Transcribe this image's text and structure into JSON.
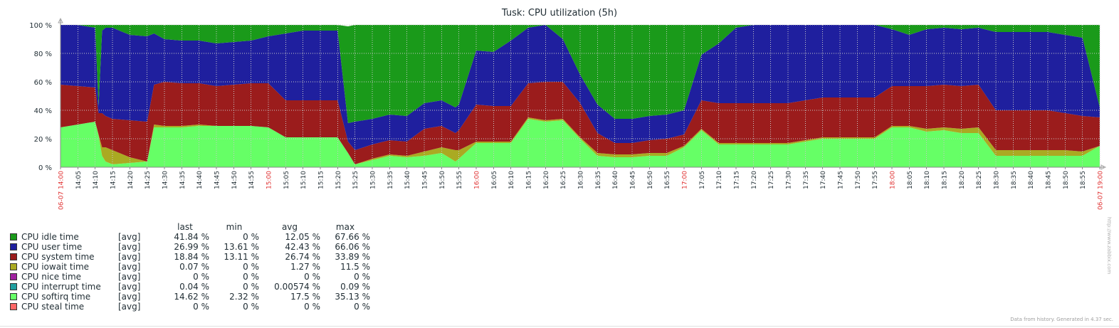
{
  "chart_data": {
    "type": "area",
    "stacked": true,
    "title": "Tusk: CPU utilization (5h)",
    "ylim": [
      0,
      100
    ],
    "y_ticks": [
      "0 %",
      "20 %",
      "40 %",
      "60 %",
      "80 %",
      "100 %"
    ],
    "y_tick_values": [
      0,
      20,
      40,
      60,
      80,
      100
    ],
    "x_ticks": [
      {
        "t": 0,
        "label": "06-07 14:00",
        "highlight": true
      },
      {
        "t": 5,
        "label": "14:05"
      },
      {
        "t": 10,
        "label": "14:10"
      },
      {
        "t": 15,
        "label": "14:15"
      },
      {
        "t": 20,
        "label": "14:20"
      },
      {
        "t": 25,
        "label": "14:25"
      },
      {
        "t": 30,
        "label": "14:30"
      },
      {
        "t": 35,
        "label": "14:35"
      },
      {
        "t": 40,
        "label": "14:40"
      },
      {
        "t": 45,
        "label": "14:45"
      },
      {
        "t": 50,
        "label": "14:50"
      },
      {
        "t": 55,
        "label": "14:55"
      },
      {
        "t": 60,
        "label": "15:00",
        "highlight": true
      },
      {
        "t": 65,
        "label": "15:05"
      },
      {
        "t": 70,
        "label": "15:10"
      },
      {
        "t": 75,
        "label": "15:15"
      },
      {
        "t": 80,
        "label": "15:20"
      },
      {
        "t": 85,
        "label": "15:25"
      },
      {
        "t": 90,
        "label": "15:30"
      },
      {
        "t": 95,
        "label": "15:35"
      },
      {
        "t": 100,
        "label": "15:40"
      },
      {
        "t": 105,
        "label": "15:45"
      },
      {
        "t": 110,
        "label": "15:50"
      },
      {
        "t": 115,
        "label": "15:55"
      },
      {
        "t": 120,
        "label": "16:00",
        "highlight": true
      },
      {
        "t": 125,
        "label": "16:05"
      },
      {
        "t": 130,
        "label": "16:10"
      },
      {
        "t": 135,
        "label": "16:15"
      },
      {
        "t": 140,
        "label": "16:20"
      },
      {
        "t": 145,
        "label": "16:25"
      },
      {
        "t": 150,
        "label": "16:30"
      },
      {
        "t": 155,
        "label": "16:35"
      },
      {
        "t": 160,
        "label": "16:40"
      },
      {
        "t": 165,
        "label": "16:45"
      },
      {
        "t": 170,
        "label": "16:50"
      },
      {
        "t": 175,
        "label": "16:55"
      },
      {
        "t": 180,
        "label": "17:00",
        "highlight": true
      },
      {
        "t": 185,
        "label": "17:05"
      },
      {
        "t": 190,
        "label": "17:10"
      },
      {
        "t": 195,
        "label": "17:15"
      },
      {
        "t": 200,
        "label": "17:20"
      },
      {
        "t": 205,
        "label": "17:25"
      },
      {
        "t": 210,
        "label": "17:30"
      },
      {
        "t": 215,
        "label": "17:35"
      },
      {
        "t": 220,
        "label": "17:40"
      },
      {
        "t": 225,
        "label": "17:45"
      },
      {
        "t": 230,
        "label": "17:50"
      },
      {
        "t": 235,
        "label": "17:55"
      },
      {
        "t": 240,
        "label": "18:00",
        "highlight": true
      },
      {
        "t": 245,
        "label": "18:05"
      },
      {
        "t": 250,
        "label": "18:10"
      },
      {
        "t": 255,
        "label": "18:15"
      },
      {
        "t": 260,
        "label": "18:20"
      },
      {
        "t": 265,
        "label": "18:25"
      },
      {
        "t": 270,
        "label": "18:30"
      },
      {
        "t": 275,
        "label": "18:35"
      },
      {
        "t": 280,
        "label": "18:40"
      },
      {
        "t": 285,
        "label": "18:45"
      },
      {
        "t": 290,
        "label": "18:50"
      },
      {
        "t": 295,
        "label": "18:55"
      },
      {
        "t": 300,
        "label": "06-07 19:00",
        "highlight": true
      }
    ],
    "x_minutes": [
      0,
      5,
      10,
      11,
      12,
      13,
      15,
      20,
      25,
      27,
      30,
      35,
      40,
      45,
      50,
      55,
      60,
      65,
      70,
      75,
      80,
      83,
      85,
      90,
      95,
      100,
      105,
      110,
      114,
      115,
      120,
      125,
      130,
      135,
      140,
      145,
      150,
      155,
      160,
      165,
      170,
      175,
      180,
      185,
      190,
      195,
      200,
      205,
      210,
      215,
      220,
      225,
      230,
      235,
      240,
      245,
      250,
      255,
      260,
      265,
      270,
      275,
      280,
      285,
      290,
      295,
      300
    ],
    "series": [
      {
        "name": "CPU softirq time",
        "color": "#66ff66",
        "values": [
          28,
          30,
          32,
          22,
          8,
          4,
          2,
          3,
          4,
          28,
          28,
          28,
          29,
          29,
          29,
          29,
          28,
          21,
          21,
          21,
          21,
          10,
          2,
          5,
          8,
          7,
          8,
          10,
          4,
          6,
          17,
          17,
          17,
          34,
          32,
          33,
          20,
          8,
          7,
          7,
          8,
          8,
          14,
          26,
          16,
          16,
          16,
          16,
          16,
          18,
          20,
          20,
          20,
          20,
          28,
          28,
          25,
          26,
          24,
          24,
          8,
          8,
          8,
          8,
          8,
          8,
          15
        ]
      },
      {
        "name": "CPU iowait time",
        "color": "#aaaa22",
        "values": [
          0,
          0,
          0,
          1,
          6,
          10,
          10,
          4,
          0,
          2,
          1,
          1,
          1,
          0,
          0,
          0,
          0,
          0,
          0,
          0,
          0,
          0,
          0,
          1,
          1,
          1,
          3,
          4,
          8,
          6,
          1,
          1,
          1,
          1,
          1,
          1,
          1,
          2,
          2,
          2,
          2,
          2,
          1,
          1,
          1,
          1,
          1,
          1,
          1,
          1,
          1,
          1,
          1,
          1,
          1,
          1,
          2,
          2,
          3,
          4,
          4,
          4,
          4,
          4,
          4,
          3,
          0
        ]
      },
      {
        "name": "CPU system time",
        "color": "#9b1c1c",
        "values": [
          30,
          27,
          24,
          15,
          24,
          22,
          22,
          26,
          28,
          28,
          31,
          30,
          29,
          28,
          29,
          30,
          31,
          26,
          26,
          26,
          26,
          8,
          10,
          10,
          10,
          10,
          16,
          15,
          12,
          14,
          26,
          25,
          25,
          24,
          27,
          26,
          24,
          14,
          8,
          8,
          9,
          10,
          8,
          20,
          28,
          28,
          28,
          28,
          28,
          28,
          28,
          28,
          28,
          28,
          28,
          28,
          30,
          30,
          30,
          30,
          28,
          28,
          28,
          28,
          26,
          25,
          20
        ]
      },
      {
        "name": "CPU user time",
        "color": "#1f1f9e",
        "values": [
          42,
          43,
          42,
          5,
          58,
          62,
          64,
          60,
          60,
          36,
          30,
          30,
          30,
          30,
          30,
          30,
          33,
          47,
          49,
          49,
          49,
          13,
          20,
          18,
          18,
          18,
          18,
          18,
          18,
          18,
          38,
          38,
          46,
          39,
          40,
          30,
          20,
          20,
          17,
          17,
          17,
          17,
          17,
          32,
          42,
          53,
          55,
          55,
          55,
          55,
          55,
          55,
          55,
          55,
          40,
          36,
          40,
          40,
          40,
          40,
          55,
          55,
          55,
          55,
          55,
          55,
          7
        ]
      },
      {
        "name": "CPU idle time",
        "color": "#1a9a1a",
        "values": [
          0,
          0,
          2,
          57,
          4,
          2,
          2,
          7,
          8,
          6,
          10,
          11,
          11,
          13,
          12,
          11,
          8,
          6,
          4,
          4,
          4,
          68,
          68,
          66,
          63,
          64,
          57,
          53,
          58,
          56,
          18,
          19,
          11,
          2,
          0,
          10,
          35,
          56,
          66,
          66,
          64,
          63,
          60,
          21,
          13,
          2,
          0,
          0,
          0,
          0,
          0,
          0,
          0,
          0,
          3,
          7,
          3,
          2,
          3,
          2,
          5,
          5,
          5,
          5,
          7,
          9,
          58
        ]
      },
      {
        "name": "CPU nice time",
        "color": "#a020a0",
        "values": []
      },
      {
        "name": "CPU interrupt time",
        "color": "#20a0a0",
        "values": []
      },
      {
        "name": "CPU steal time",
        "color": "#ff6666",
        "values": []
      }
    ],
    "legend": {
      "headers": {
        "last": "last",
        "min": "min",
        "avg": "avg",
        "max": "max"
      },
      "rows": [
        {
          "name": "CPU idle time",
          "color": "#1a9a1a",
          "fn": "[avg]",
          "last": "41.84 %",
          "min": "0 %",
          "avg": "12.05 %",
          "max": "67.66 %"
        },
        {
          "name": "CPU user time",
          "color": "#1f1f9e",
          "fn": "[avg]",
          "last": "26.99 %",
          "min": "13.61 %",
          "avg": "42.43 %",
          "max": "66.06 %"
        },
        {
          "name": "CPU system time",
          "color": "#9b1c1c",
          "fn": "[avg]",
          "last": "18.84 %",
          "min": "13.11 %",
          "avg": "26.74 %",
          "max": "33.89 %"
        },
        {
          "name": "CPU iowait time",
          "color": "#aaaa22",
          "fn": "[avg]",
          "last": "0.07 %",
          "min": "0 %",
          "avg": "1.27 %",
          "max": "11.5 %"
        },
        {
          "name": "CPU nice time",
          "color": "#a020a0",
          "fn": "[avg]",
          "last": "0 %",
          "min": "0 %",
          "avg": "0 %",
          "max": "0 %"
        },
        {
          "name": "CPU interrupt time",
          "color": "#20a0a0",
          "fn": "[avg]",
          "last": "0.04 %",
          "min": "0 %",
          "avg": "0.00574 %",
          "max": "0.09 %"
        },
        {
          "name": "CPU softirq time",
          "color": "#66ff66",
          "fn": "[avg]",
          "last": "14.62 %",
          "min": "2.32 %",
          "avg": "17.5 %",
          "max": "35.13 %"
        },
        {
          "name": "CPU steal time",
          "color": "#ff6666",
          "fn": "[avg]",
          "last": "0 %",
          "min": "0 %",
          "avg": "0 %",
          "max": "0 %"
        }
      ]
    },
    "grid": true
  },
  "footer": "Data from history. Generated in 4.37 sec.",
  "watermark": "http://www.zabbix.com"
}
